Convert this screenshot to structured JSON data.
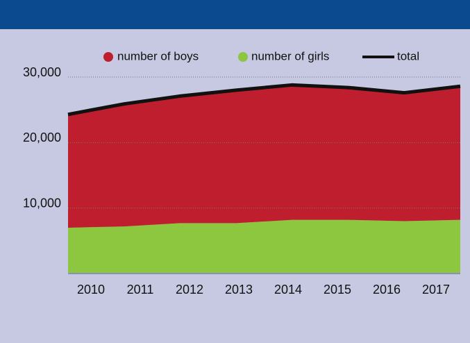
{
  "chart_data": {
    "type": "stacked-area",
    "categories": [
      "2010",
      "2011",
      "2012",
      "2013",
      "2014",
      "2015",
      "2016",
      "2017"
    ],
    "series": [
      {
        "name": "number of girls",
        "color": "#8dc63f",
        "values": [
          7000,
          7200,
          7700,
          7700,
          8200,
          8200,
          8000,
          8200
        ]
      },
      {
        "name": "number of boys",
        "color": "#be1e2d",
        "values": [
          17300,
          18700,
          19400,
          20300,
          20600,
          20200,
          19600,
          20400
        ]
      }
    ],
    "total": {
      "name": "total",
      "color": "#111111",
      "values": [
        24300,
        25900,
        27100,
        28000,
        28800,
        28400,
        27600,
        28600
      ]
    },
    "ylim": [
      0,
      30000
    ],
    "yticks": [
      {
        "value": 10000,
        "label": "10,000"
      },
      {
        "value": 20000,
        "label": "20,000"
      },
      {
        "value": 30000,
        "label": "30,000"
      }
    ],
    "grid": true
  }
}
